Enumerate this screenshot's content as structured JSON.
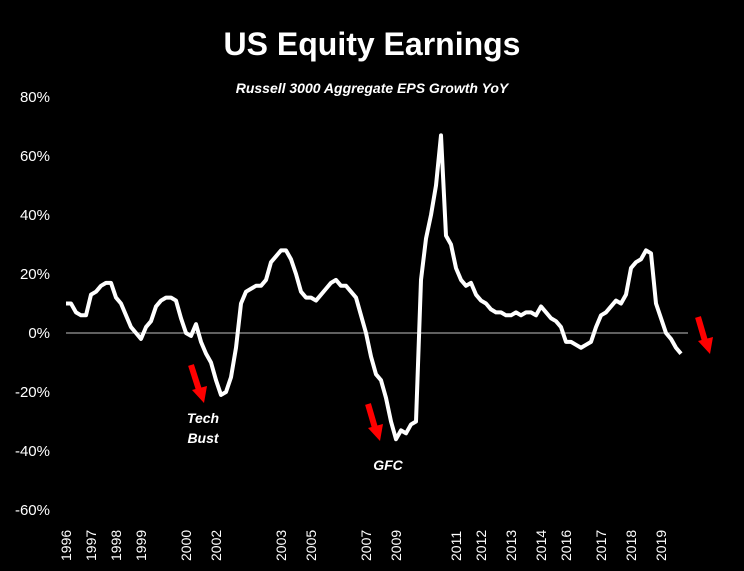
{
  "chart_data": {
    "type": "line",
    "title": "US Equity Earnings",
    "subtitle": "Russell 3000 Aggregate EPS Growth YoY",
    "categories": [
      "1996",
      null,
      null,
      null,
      null,
      "1997",
      null,
      null,
      null,
      null,
      "1998",
      null,
      null,
      null,
      null,
      "1999",
      null,
      null,
      null,
      null,
      null,
      null,
      null,
      null,
      "2000",
      null,
      null,
      null,
      null,
      null,
      "2002",
      null,
      null,
      null,
      null,
      null,
      null,
      null,
      null,
      null,
      null,
      null,
      null,
      "2003",
      null,
      null,
      null,
      null,
      null,
      "2005",
      null,
      null,
      null,
      null,
      null,
      null,
      null,
      null,
      null,
      null,
      "2007",
      null,
      null,
      null,
      null,
      null,
      "2009",
      null,
      null,
      null,
      null,
      null,
      null,
      null,
      null,
      null,
      null,
      null,
      "2011",
      null,
      null,
      null,
      null,
      "2012",
      null,
      null,
      null,
      null,
      null,
      "2013",
      null,
      null,
      null,
      null,
      null,
      "2014",
      null,
      null,
      null,
      null,
      "2016",
      null,
      null,
      null,
      null,
      null,
      null,
      "2017",
      null,
      null,
      null,
      null,
      null,
      "2018",
      null,
      null,
      null,
      null,
      null,
      "2019",
      null,
      null,
      null,
      null
    ],
    "series": [
      {
        "name": "Russell 3000 Aggregate EPS Growth YoY",
        "color": "#ffffff",
        "values": [
          10,
          10,
          7,
          6,
          6,
          13,
          14,
          16,
          17,
          17,
          12,
          10,
          6,
          2,
          0,
          -2,
          2,
          4,
          9,
          11,
          12,
          12,
          11,
          5,
          0,
          -1,
          3,
          -3,
          -7,
          -10,
          -16,
          -21,
          -20,
          -15,
          -5,
          10,
          14,
          15,
          16,
          16,
          18,
          24,
          26,
          28,
          28,
          25,
          20,
          14,
          12,
          12,
          11,
          13,
          15,
          17,
          18,
          16,
          16,
          14,
          12,
          6,
          0,
          -8,
          -14,
          -16,
          -22,
          -30,
          -36,
          -33,
          -34,
          -31,
          -30,
          18,
          32,
          40,
          50,
          67,
          33,
          30,
          22,
          18,
          16,
          17,
          13,
          11,
          10,
          8,
          7,
          7,
          6,
          6,
          7,
          6,
          7,
          7,
          6,
          9,
          7,
          5,
          4,
          2,
          -3,
          -3,
          -4,
          -5,
          -4,
          -3,
          2,
          6,
          7,
          9,
          11,
          10,
          13,
          22,
          24,
          25,
          28,
          27,
          10,
          5,
          0,
          -2,
          -5,
          -7
        ]
      }
    ],
    "ylim": [
      -60,
      80
    ],
    "yticks": [
      {
        "value": -60,
        "label": "-60%"
      },
      {
        "value": -40,
        "label": "-40%"
      },
      {
        "value": -20,
        "label": "-20%"
      },
      {
        "value": 0,
        "label": "0%"
      },
      {
        "value": 20,
        "label": "20%"
      },
      {
        "value": 40,
        "label": "40%"
      },
      {
        "value": 60,
        "label": "60%"
      },
      {
        "value": 80,
        "label": "80%"
      }
    ],
    "annotations": [
      {
        "lines": [
          "Tech",
          "Bust"
        ]
      },
      {
        "lines": [
          "GFC"
        ]
      }
    ]
  }
}
